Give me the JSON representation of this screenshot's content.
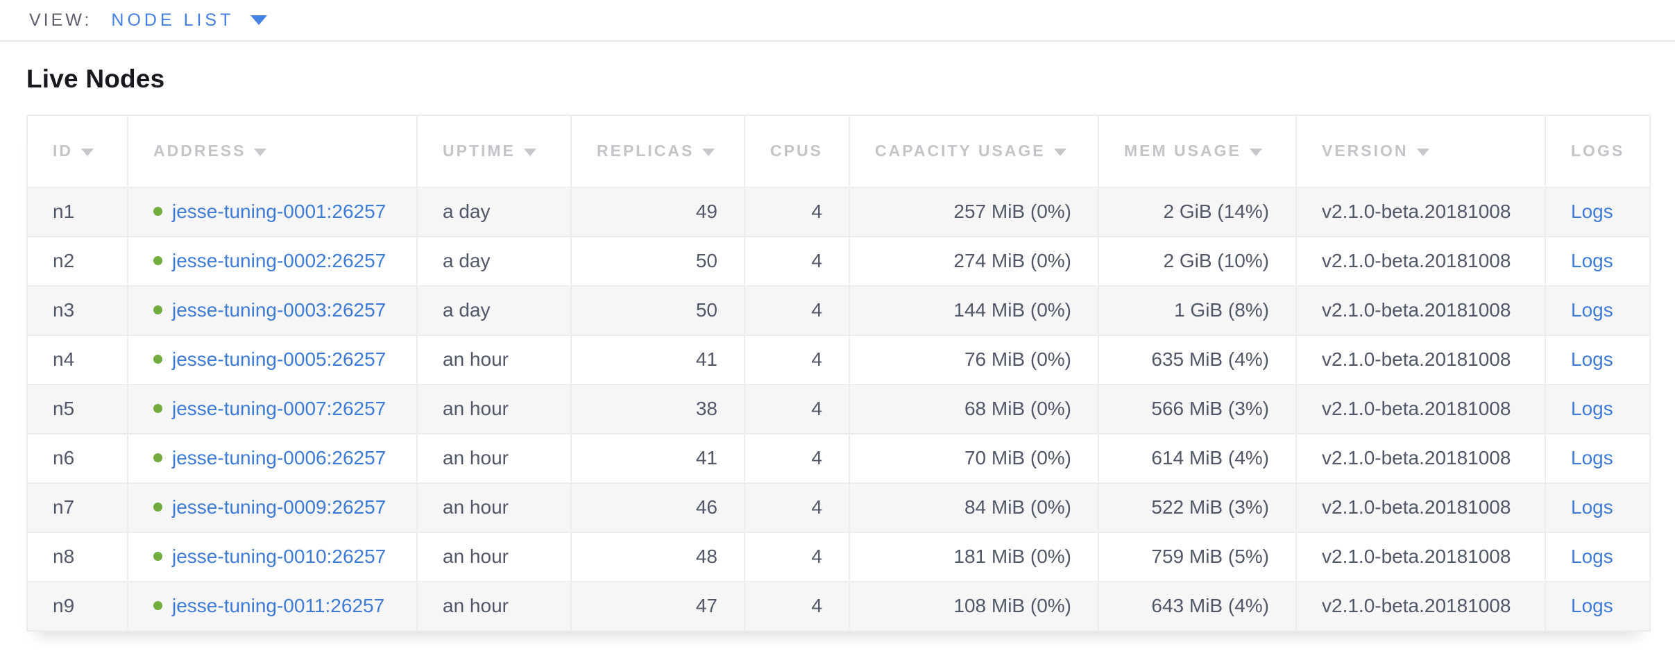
{
  "view_bar": {
    "label": "VIEW:",
    "selected_view": "NODE LIST"
  },
  "page_title": "Live Nodes",
  "table": {
    "columns": [
      {
        "key": "id",
        "label": "ID",
        "sortable": true,
        "align": "left"
      },
      {
        "key": "address",
        "label": "ADDRESS",
        "sortable": true,
        "align": "left"
      },
      {
        "key": "uptime",
        "label": "UPTIME",
        "sortable": true,
        "align": "left"
      },
      {
        "key": "replicas",
        "label": "REPLICAS",
        "sortable": true,
        "align": "right"
      },
      {
        "key": "cpus",
        "label": "CPUS",
        "sortable": false,
        "align": "right"
      },
      {
        "key": "capacity",
        "label": "CAPACITY USAGE",
        "sortable": true,
        "align": "right"
      },
      {
        "key": "mem",
        "label": "MEM USAGE",
        "sortable": true,
        "align": "right"
      },
      {
        "key": "version",
        "label": "VERSION",
        "sortable": true,
        "align": "left"
      },
      {
        "key": "logs",
        "label": "LOGS",
        "sortable": false,
        "align": "left"
      }
    ],
    "rows": [
      {
        "id": "n1",
        "status": "live",
        "address": "jesse-tuning-0001:26257",
        "uptime": "a day",
        "replicas": "49",
        "cpus": "4",
        "capacity": "257 MiB (0%)",
        "mem": "2 GiB (14%)",
        "version": "v2.1.0-beta.20181008",
        "logs": "Logs"
      },
      {
        "id": "n2",
        "status": "live",
        "address": "jesse-tuning-0002:26257",
        "uptime": "a day",
        "replicas": "50",
        "cpus": "4",
        "capacity": "274 MiB (0%)",
        "mem": "2 GiB (10%)",
        "version": "v2.1.0-beta.20181008",
        "logs": "Logs"
      },
      {
        "id": "n3",
        "status": "live",
        "address": "jesse-tuning-0003:26257",
        "uptime": "a day",
        "replicas": "50",
        "cpus": "4",
        "capacity": "144 MiB (0%)",
        "mem": "1 GiB (8%)",
        "version": "v2.1.0-beta.20181008",
        "logs": "Logs"
      },
      {
        "id": "n4",
        "status": "live",
        "address": "jesse-tuning-0005:26257",
        "uptime": "an hour",
        "replicas": "41",
        "cpus": "4",
        "capacity": "76 MiB (0%)",
        "mem": "635 MiB (4%)",
        "version": "v2.1.0-beta.20181008",
        "logs": "Logs"
      },
      {
        "id": "n5",
        "status": "live",
        "address": "jesse-tuning-0007:26257",
        "uptime": "an hour",
        "replicas": "38",
        "cpus": "4",
        "capacity": "68 MiB (0%)",
        "mem": "566 MiB (3%)",
        "version": "v2.1.0-beta.20181008",
        "logs": "Logs"
      },
      {
        "id": "n6",
        "status": "live",
        "address": "jesse-tuning-0006:26257",
        "uptime": "an hour",
        "replicas": "41",
        "cpus": "4",
        "capacity": "70 MiB (0%)",
        "mem": "614 MiB (4%)",
        "version": "v2.1.0-beta.20181008",
        "logs": "Logs"
      },
      {
        "id": "n7",
        "status": "live",
        "address": "jesse-tuning-0009:26257",
        "uptime": "an hour",
        "replicas": "46",
        "cpus": "4",
        "capacity": "84 MiB (0%)",
        "mem": "522 MiB (3%)",
        "version": "v2.1.0-beta.20181008",
        "logs": "Logs"
      },
      {
        "id": "n8",
        "status": "live",
        "address": "jesse-tuning-0010:26257",
        "uptime": "an hour",
        "replicas": "48",
        "cpus": "4",
        "capacity": "181 MiB (0%)",
        "mem": "759 MiB (5%)",
        "version": "v2.1.0-beta.20181008",
        "logs": "Logs"
      },
      {
        "id": "n9",
        "status": "live",
        "address": "jesse-tuning-0011:26257",
        "uptime": "an hour",
        "replicas": "47",
        "cpus": "4",
        "capacity": "108 MiB (0%)",
        "mem": "643 MiB (4%)",
        "version": "v2.1.0-beta.20181008",
        "logs": "Logs"
      }
    ]
  },
  "colors": {
    "link_blue": "#3e7bd6",
    "nav_blue": "#4581e2",
    "live_green": "#72ac3f",
    "header_text": "#c3c4c8",
    "body_text": "#515767",
    "row_stripe": "#f6f6f7",
    "table_border": "#ededed"
  }
}
